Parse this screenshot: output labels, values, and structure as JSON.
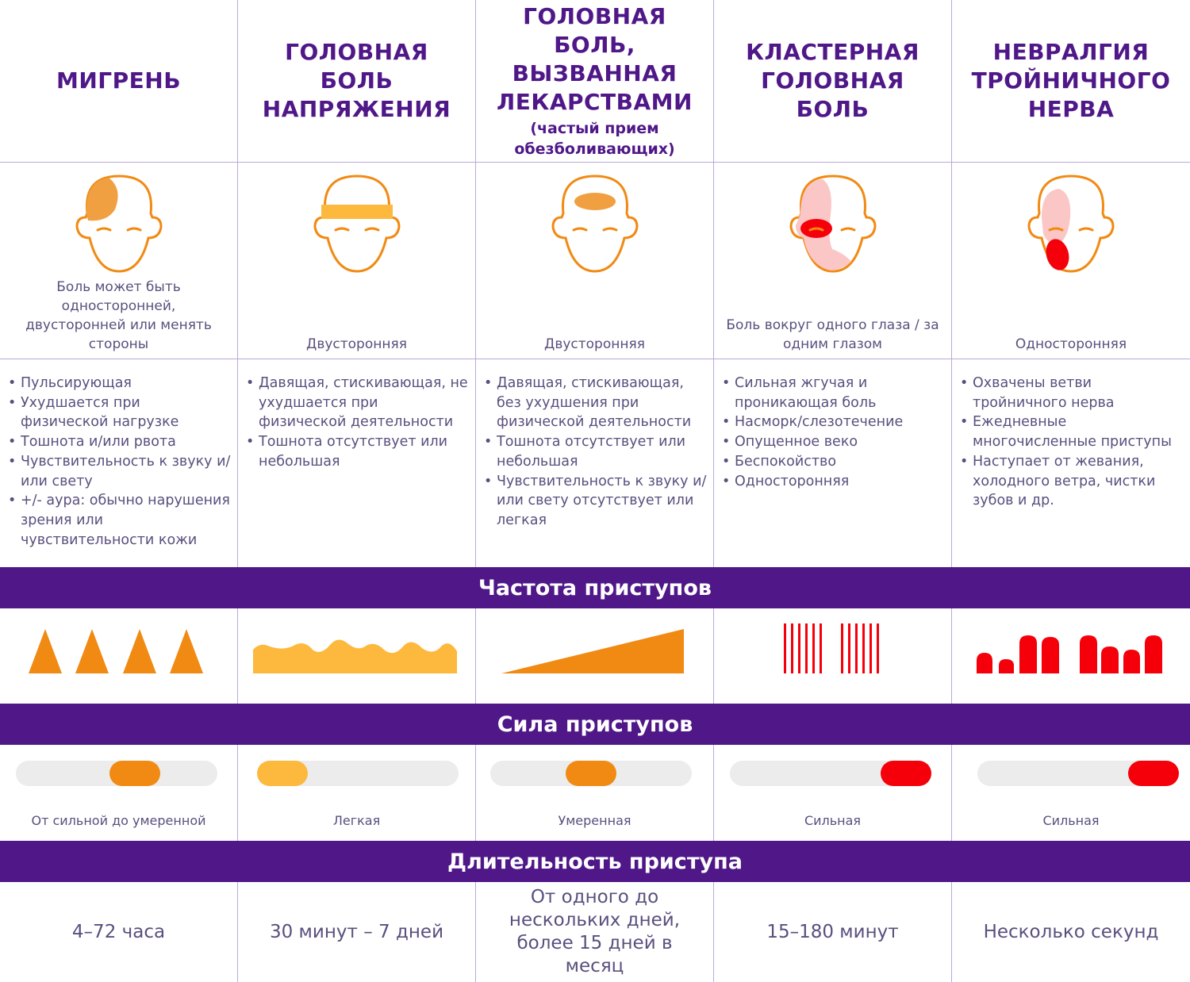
{
  "columns": [
    {
      "title": "МИГРЕНЬ",
      "subtitle": "",
      "location": "Боль может быть односторонней, двусторонней или менять стороны",
      "symptoms": [
        "Пульсирующая",
        "Ухудшается при физической нагрузке",
        "Тошнота и/или рвота",
        "Чувствительность к звуку и/или свету",
        "+/- аура: обычно нарушения зрения или чувствительности кожи"
      ],
      "strength": "От сильной до умеренной",
      "strength_level": 0.62,
      "strength_color": "#f18a13",
      "duration": "4–72 часа"
    },
    {
      "title": "ГОЛОВНАЯ БОЛЬ НАПРЯЖЕНИЯ",
      "subtitle": "",
      "location": "Двусторонняя",
      "symptoms": [
        "Давящая, стискивающая, не ухудшается при физической деятельности",
        "Тошнота отсутствует или небольшая"
      ],
      "strength": "Легкая",
      "strength_level": 0.0,
      "strength_color": "#fdb93e",
      "duration": "30 минут – 7 дней"
    },
    {
      "title": "ГОЛОВНАЯ БОЛЬ, ВЫЗВАННАЯ ЛЕКАРСТВАМИ",
      "subtitle": "(частый прием обезболивающих)",
      "location": "Двусторонняя",
      "symptoms": [
        "Давящая, стискивающая, без ухудшения при физической деятельности",
        "Тошнота отсутствует или небольшая",
        "Чувствительность к звуку и/или свету отсутствует или легкая"
      ],
      "strength": "Умеренная",
      "strength_level": 0.5,
      "strength_color": "#f18a13",
      "duration": "От одного до нескольких дней, более 15 дней в месяц"
    },
    {
      "title": "КЛАСТЕРНАЯ ГОЛОВНАЯ БОЛЬ",
      "subtitle": "",
      "location": "Боль вокруг одного глаза / за одним глазом",
      "symptoms": [
        "Сильная жгучая и проникающая боль",
        "Насморк/слезотечение",
        "Опущенное веко",
        "Беспокойство",
        "Односторонняя"
      ],
      "strength": "Сильная",
      "strength_level": 1.0,
      "strength_color": "#f5000a",
      "duration": "15–180 минут"
    },
    {
      "title": "НЕВРАЛГИЯ ТРОЙНИЧНОГО НЕРВА",
      "subtitle": "",
      "location": "Односторонняя",
      "symptoms": [
        "Охвачены ветви тройничного нерва",
        "Ежедневные многочисленные приступы",
        "Наступает от жевания, холодного ветра, чистки зубов и др."
      ],
      "strength": "Сильная",
      "strength_level": 1.0,
      "strength_color": "#f5000a",
      "duration": "Несколько секунд"
    }
  ],
  "sections": {
    "frequency": "Частота приступов",
    "strength": "Сила приступов",
    "duration": "Длительность приступа"
  },
  "colors": {
    "purple": "#4f1788",
    "orange": "#f18a13",
    "yellow": "#fdb93e",
    "red": "#f5000a",
    "pink": "#fbc6c6",
    "track": "#ececec"
  },
  "icons": [
    "head-migraine-icon",
    "head-tension-icon",
    "head-medication-icon",
    "head-cluster-icon",
    "head-trigeminal-icon"
  ]
}
